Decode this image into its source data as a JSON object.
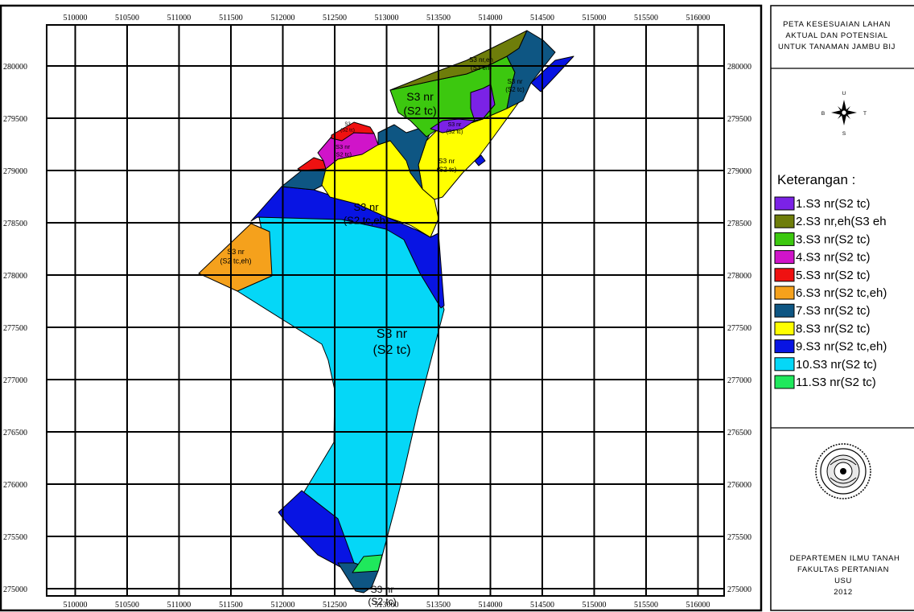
{
  "title": [
    "PETA KESESUAIAN LAHAN",
    "AKTUAL DAN POTENSIAL",
    "UNTUK TANAMAN JAMBU BIJ"
  ],
  "compass": {
    "north": "U",
    "south": "S",
    "east": "T",
    "west": "B"
  },
  "legend": {
    "heading": "Keterangan :",
    "items": [
      {
        "label": "1.S3 nr(S2 tc)",
        "color": "#7b22e6"
      },
      {
        "label": "2.S3 nr,eh(S3 eh",
        "color": "#6e7d0a"
      },
      {
        "label": "3.S3 nr(S2 tc)",
        "color": "#3cc80f"
      },
      {
        "label": "4.S3 nr(S2 tc)",
        "color": "#d014c9"
      },
      {
        "label": "5.S3 nr(S2 tc)",
        "color": "#ef1111"
      },
      {
        "label": "6.S3 nr(S2 tc,eh)",
        "color": "#f5a11c"
      },
      {
        "label": "7.S3 nr(S2 tc)",
        "color": "#0e5683"
      },
      {
        "label": "8.S3 nr(S2 tc)",
        "color": "#ffff00"
      },
      {
        "label": "9.S3 nr(S2 tc,eh)",
        "color": "#0814e3"
      },
      {
        "label": "10.S3 nr(S2 tc)",
        "color": "#05d7f7"
      },
      {
        "label": "11.S3 nr(S2 tc)",
        "color": "#1fe85c"
      }
    ]
  },
  "footer": [
    "DEPARTEMEN ILMU TANAH",
    "FAKULTAS PERTANIAN",
    "USU",
    "2012"
  ],
  "x_ticks": [
    "510000",
    "510500",
    "511000",
    "511500",
    "512000",
    "512500",
    "513000",
    "513500",
    "514000",
    "514500",
    "515000",
    "515500",
    "516000"
  ],
  "y_ticks": [
    "280000",
    "279500",
    "279000",
    "278500",
    "278000",
    "277500",
    "277000",
    "276500",
    "276000",
    "275500",
    "275000"
  ],
  "zone_labels": [
    {
      "line1": "S3 nr,eh",
      "line2": "(S3 eh)"
    },
    {
      "line1": "S3 nr",
      "line2": "(S2 tc)"
    },
    {
      "line1": "S3 nr",
      "line2": "(S2 tc)"
    },
    {
      "line1": "S3 nr",
      "line2": "(S2 tc)"
    },
    {
      "line1": "S3",
      "line2": "(S2 tc)"
    },
    {
      "line1": "S3 nr",
      "line2": "(S2 tc)"
    },
    {
      "line1": "S3 nr",
      "line2": "(S2 tc)"
    },
    {
      "line1": "S3 nr",
      "line2": "(S2 tc,eh)"
    },
    {
      "line1": "S3 nr",
      "line2": "(S2 tc,eh)"
    },
    {
      "line1": "S3 nr",
      "line2": "(S2 tc)"
    },
    {
      "line1": "S3 nr",
      "line2": "(S2 tc)"
    }
  ]
}
